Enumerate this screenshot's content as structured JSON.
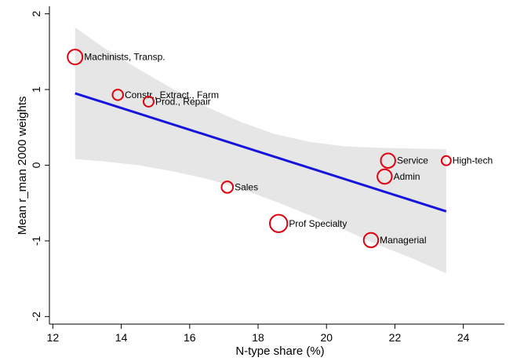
{
  "chart_data": {
    "type": "scatter",
    "xlabel": "N-type share (%)",
    "ylabel": "Mean r_man 2000 weights",
    "xlim": [
      11.9,
      25.2
    ],
    "ylim": [
      -2.1,
      2.1
    ],
    "x_ticks": [
      12,
      14,
      16,
      18,
      20,
      22,
      24
    ],
    "y_ticks": [
      -2,
      -1,
      0,
      1,
      2
    ],
    "grid": false,
    "points": [
      {
        "label": "Machinists, Transp.",
        "x": 12.65,
        "y": 1.43,
        "weight": 1.0
      },
      {
        "label": "Constr., Extract., Farm",
        "x": 13.9,
        "y": 0.93,
        "weight": 0.5
      },
      {
        "label": "Prod., Repair",
        "x": 14.8,
        "y": 0.84,
        "weight": 0.45
      },
      {
        "label": "Sales",
        "x": 17.1,
        "y": -0.29,
        "weight": 0.6
      },
      {
        "label": "Prof Specialty",
        "x": 18.6,
        "y": -0.77,
        "weight": 1.3
      },
      {
        "label": "Managerial",
        "x": 21.3,
        "y": -0.99,
        "weight": 0.95
      },
      {
        "label": "Service",
        "x": 21.8,
        "y": 0.06,
        "weight": 0.95
      },
      {
        "label": "Admin",
        "x": 21.7,
        "y": -0.15,
        "weight": 0.95
      },
      {
        "label": "High-tech",
        "x": 23.5,
        "y": 0.06,
        "weight": 0.35
      }
    ],
    "fit_line": {
      "x": [
        12.65,
        23.5
      ],
      "y": [
        0.95,
        -0.61
      ]
    },
    "confidence_band": {
      "x": [
        12.65,
        13.5,
        14.5,
        15.5,
        16.5,
        17.5,
        18.5,
        19.5,
        20.5,
        21.5,
        22.5,
        23.5
      ],
      "upper": [
        1.82,
        1.55,
        1.27,
        1.01,
        0.77,
        0.57,
        0.41,
        0.31,
        0.25,
        0.23,
        0.22,
        0.21
      ],
      "lower": [
        0.08,
        0.05,
        0.0,
        -0.08,
        -0.18,
        -0.31,
        -0.48,
        -0.66,
        -0.85,
        -1.05,
        -1.23,
        -1.43
      ]
    },
    "colors": {
      "marker": "#e0000d",
      "line": "#1414dc",
      "band": "#e6e6e6"
    }
  }
}
